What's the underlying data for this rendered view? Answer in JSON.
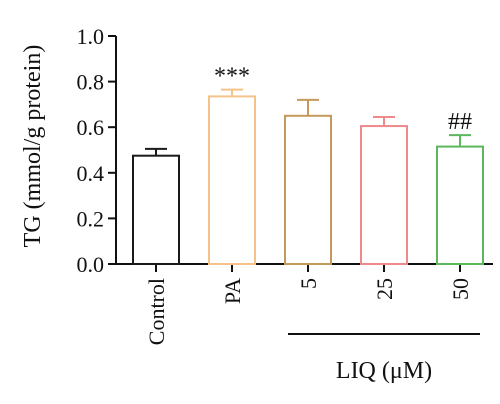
{
  "chart_data": {
    "type": "bar",
    "ylabel": "TG (mmol/g protein)",
    "ylim": [
      0,
      1.0
    ],
    "yticks": [
      "0.0",
      "0.2",
      "0.4",
      "0.6",
      "0.8",
      "1.0"
    ],
    "ytick_values": [
      0,
      0.2,
      0.4,
      0.6,
      0.8,
      1.0
    ],
    "categories": [
      "Control",
      "PA",
      "5",
      "25",
      "50"
    ],
    "values": [
      0.475,
      0.735,
      0.65,
      0.605,
      0.515
    ],
    "errors": [
      0.03,
      0.03,
      0.07,
      0.04,
      0.05
    ],
    "colors": [
      "#1a1a1a",
      "#f5c28a",
      "#c49a5a",
      "#f08a8a",
      "#5cb85c"
    ],
    "annotations": [
      "",
      "***",
      "",
      "",
      "##"
    ],
    "group_label": "LIQ (μM)",
    "grid": false
  }
}
